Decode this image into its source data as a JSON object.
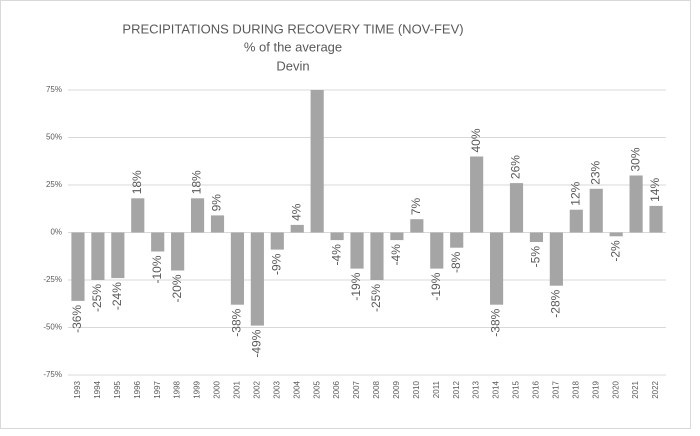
{
  "chart_data": {
    "type": "bar",
    "title": "PRECIPITATIONS DURING RECOVERY TIME (NOV-FEV)",
    "subtitles": [
      "% of the average",
      "Devin"
    ],
    "categories": [
      "1993",
      "1994",
      "1995",
      "1996",
      "1997",
      "1998",
      "1999",
      "2000",
      "2001",
      "2002",
      "2003",
      "2004",
      "2005",
      "2006",
      "2007",
      "2008",
      "2009",
      "2010",
      "2011",
      "2012",
      "2013",
      "2014",
      "2015",
      "2016",
      "2017",
      "2018",
      "2019",
      "2020",
      "2021",
      "2022"
    ],
    "values": [
      -36,
      -25,
      -24,
      18,
      -10,
      -20,
      18,
      9,
      -38,
      -49,
      -9,
      4,
      75,
      -4,
      -19,
      -25,
      -4,
      7,
      -19,
      -8,
      40,
      -38,
      26,
      -5,
      -28,
      12,
      23,
      -2,
      30,
      14
    ],
    "value_labels": [
      "-36%",
      "-25%",
      "-24%",
      "18%",
      "-10%",
      "-20%",
      "18%",
      "9%",
      "-38%",
      "-49%",
      "-9%",
      "4%",
      null,
      "-4%",
      "-19%",
      "-25%",
      "-4%",
      "7%",
      "-19%",
      "-8%",
      "40%",
      "-38%",
      "26%",
      "-5%",
      "-28%",
      "12%",
      "23%",
      "-2%",
      "30%",
      "14%"
    ],
    "color": "#a5a5a5",
    "ylim": [
      -75,
      75
    ],
    "yticks": [
      {
        "value": -75,
        "label": "-75%"
      },
      {
        "value": -50,
        "label": "-50%"
      },
      {
        "value": -25,
        "label": "-25%"
      },
      {
        "value": 0,
        "label": "0%"
      },
      {
        "value": 25,
        "label": "25%"
      },
      {
        "value": 50,
        "label": "50%"
      },
      {
        "value": 75,
        "label": "75%"
      }
    ],
    "grid": true
  }
}
